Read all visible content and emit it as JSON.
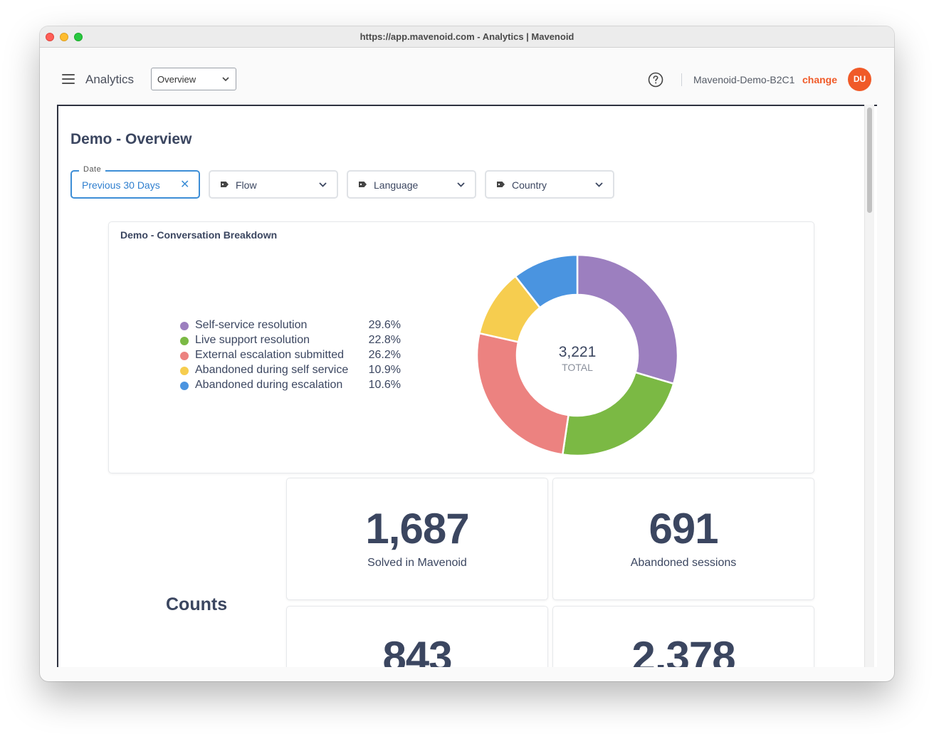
{
  "window": {
    "title": "https://app.mavenoid.com - Analytics | Mavenoid"
  },
  "appbar": {
    "menu_icon": "hamburger-menu-icon",
    "title": "Analytics",
    "view_select": {
      "value": "Overview",
      "options": [
        "Overview"
      ]
    },
    "help_icon": "question-circle-icon",
    "account_name": "Mavenoid-Demo-B2C1",
    "change_label": "change",
    "avatar_initials": "DU",
    "accent_color": "#f05a28"
  },
  "page": {
    "title": "Demo - Overview",
    "filters": {
      "date": {
        "label": "Date",
        "value": "Previous 30 Days",
        "clear_icon": "close-icon"
      },
      "flow": {
        "label": "Flow",
        "icon": "tag-icon"
      },
      "language": {
        "label": "Language",
        "icon": "tag-icon"
      },
      "country": {
        "label": "Country",
        "icon": "tag-icon"
      }
    }
  },
  "breakdown": {
    "title": "Demo - Conversation Breakdown",
    "total_value": "3,221",
    "total_label": "TOTAL",
    "legend": [
      {
        "label": "Self-service resolution",
        "pct": "29.6%",
        "color": "#9c7fbf"
      },
      {
        "label": "Live support resolution",
        "pct": "22.8%",
        "color": "#7bb944"
      },
      {
        "label": "External escalation submitted",
        "pct": "26.2%",
        "color": "#ec8280"
      },
      {
        "label": "Abandoned during self service",
        "pct": "10.9%",
        "color": "#f6cd4f"
      },
      {
        "label": "Abandoned during escalation",
        "pct": "10.6%",
        "color": "#4a94e0"
      }
    ]
  },
  "chart_data": {
    "type": "pie",
    "title": "Demo - Conversation Breakdown",
    "categories": [
      "Self-service resolution",
      "Live support resolution",
      "External escalation submitted",
      "Abandoned during self service",
      "Abandoned during escalation"
    ],
    "values": [
      29.6,
      22.8,
      26.2,
      10.9,
      10.6
    ],
    "total": 3221,
    "colors": [
      "#9c7fbf",
      "#7bb944",
      "#ec8280",
      "#f6cd4f",
      "#4a94e0"
    ]
  },
  "counts": {
    "heading": "Counts",
    "cards": [
      {
        "value": "1,687",
        "label": "Solved in Mavenoid"
      },
      {
        "value": "691",
        "label": "Abandoned sessions"
      },
      {
        "value": "843",
        "label": ""
      },
      {
        "value": "2,378",
        "label": ""
      }
    ]
  }
}
